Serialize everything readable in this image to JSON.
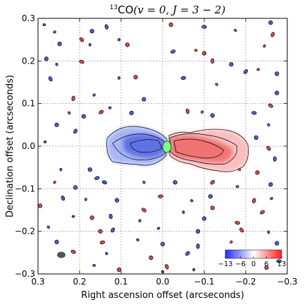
{
  "chart_data": {
    "type": "heatmap",
    "title": {
      "isotope_superscript": "13",
      "molecule": "CO",
      "transition": "(v = 0,  J = 3 − 2)"
    },
    "xlabel": "Right ascension offset (arcseconds)",
    "ylabel": "Declination offset (arcseconds)",
    "xlim": [
      0.3,
      -0.3
    ],
    "ylim": [
      -0.3,
      0.3
    ],
    "x_ticks": [
      0.3,
      0.2,
      0.1,
      0.0,
      -0.1,
      -0.2,
      -0.3
    ],
    "x_tick_labels": [
      "0.3",
      "0.2",
      "0.1",
      "0.0",
      "−0.1",
      "−0.2",
      "−0.3"
    ],
    "y_ticks": [
      -0.3,
      -0.2,
      -0.1,
      0.0,
      0.1,
      0.2,
      0.3
    ],
    "y_tick_labels": [
      "−0.3",
      "−0.2",
      "−0.1",
      "0.0",
      "0.1",
      "0.2",
      "0.3"
    ],
    "grid": true,
    "colorbar": {
      "position": "bottom-right",
      "tick_labels": [
        "−13",
        "−6",
        "0",
        "6",
        "13"
      ],
      "range": [
        -13,
        13
      ],
      "colormap": "bwr"
    },
    "blueshifted_lobe": {
      "x_range": [
        0.14,
        0.005
      ],
      "y_range": [
        -0.045,
        0.025
      ],
      "color": "#5a6ee8"
    },
    "redshifted_lobe": {
      "x_range": [
        -0.005,
        -0.17
      ],
      "y_range": [
        -0.065,
        0.04
      ],
      "color": "#f07070"
    },
    "continuum_peak": {
      "x": 0.0,
      "y": 0.0,
      "color": "#7fff7f"
    },
    "beam": {
      "x": 0.265,
      "y": -0.27,
      "color": "#555555"
    },
    "noise_specks": [
      {
        "x": 0.285,
        "y": 0.285,
        "s": -1
      },
      {
        "x": 0.17,
        "y": 0.27,
        "s": -1
      },
      {
        "x": 0.135,
        "y": 0.28,
        "s": -1
      },
      {
        "x": 0.105,
        "y": 0.25,
        "s": -1
      },
      {
        "x": -0.02,
        "y": 0.285,
        "s": 1
      },
      {
        "x": -0.1,
        "y": 0.28,
        "s": -1
      },
      {
        "x": -0.175,
        "y": 0.272,
        "s": 1
      },
      {
        "x": -0.26,
        "y": 0.29,
        "s": -1
      },
      {
        "x": -0.265,
        "y": 0.262,
        "s": 1
      },
      {
        "x": 0.26,
        "y": 0.268,
        "s": -1
      },
      {
        "x": 0.248,
        "y": 0.24,
        "s": -1
      },
      {
        "x": 0.195,
        "y": 0.25,
        "s": 1
      },
      {
        "x": 0.175,
        "y": 0.238,
        "s": -1
      },
      {
        "x": 0.085,
        "y": 0.238,
        "s": 1
      },
      {
        "x": -0.025,
        "y": 0.222,
        "s": -1
      },
      {
        "x": -0.08,
        "y": 0.225,
        "s": 1
      },
      {
        "x": -0.1,
        "y": 0.218,
        "s": 1
      },
      {
        "x": -0.12,
        "y": 0.2,
        "s": 1
      },
      {
        "x": -0.245,
        "y": 0.235,
        "s": 1
      },
      {
        "x": 0.28,
        "y": 0.205,
        "s": -1
      },
      {
        "x": 0.195,
        "y": 0.198,
        "s": 1
      },
      {
        "x": 0.255,
        "y": 0.192,
        "s": -1
      },
      {
        "x": -0.165,
        "y": 0.192,
        "s": -1
      },
      {
        "x": -0.2,
        "y": 0.175,
        "s": -1
      },
      {
        "x": -0.23,
        "y": 0.18,
        "s": 1
      },
      {
        "x": -0.275,
        "y": 0.17,
        "s": -1
      },
      {
        "x": 0.27,
        "y": 0.158,
        "s": -1
      },
      {
        "x": 0.105,
        "y": 0.16,
        "s": -1
      },
      {
        "x": 0.065,
        "y": 0.162,
        "s": 1
      },
      {
        "x": -0.05,
        "y": 0.16,
        "s": -1
      },
      {
        "x": -0.13,
        "y": 0.145,
        "s": 1
      },
      {
        "x": -0.275,
        "y": 0.125,
        "s": -1
      },
      {
        "x": 0.215,
        "y": 0.112,
        "s": 1
      },
      {
        "x": 0.165,
        "y": 0.12,
        "s": -1
      },
      {
        "x": 0.045,
        "y": 0.11,
        "s": -1
      },
      {
        "x": -0.26,
        "y": 0.095,
        "s": 1
      },
      {
        "x": 0.225,
        "y": 0.078,
        "s": -1
      },
      {
        "x": 0.19,
        "y": 0.07,
        "s": -1
      },
      {
        "x": 0.148,
        "y": 0.08,
        "s": 1
      },
      {
        "x": 0.127,
        "y": 0.09,
        "s": -1
      },
      {
        "x": 0.075,
        "y": 0.078,
        "s": -1
      },
      {
        "x": -0.06,
        "y": 0.082,
        "s": 1
      },
      {
        "x": -0.095,
        "y": 0.08,
        "s": 1
      },
      {
        "x": -0.12,
        "y": 0.072,
        "s": -1
      },
      {
        "x": -0.22,
        "y": 0.078,
        "s": -1
      },
      {
        "x": -0.255,
        "y": 0.05,
        "s": -1
      },
      {
        "x": 0.255,
        "y": 0.05,
        "s": -1
      },
      {
        "x": 0.21,
        "y": 0.035,
        "s": -1
      },
      {
        "x": 0.283,
        "y": 0.01,
        "s": -1
      },
      {
        "x": -0.225,
        "y": 0.02,
        "s": -1
      },
      {
        "x": -0.255,
        "y": -0.005,
        "s": 1
      },
      {
        "x": 0.245,
        "y": -0.055,
        "s": -1
      },
      {
        "x": 0.175,
        "y": -0.055,
        "s": -1
      },
      {
        "x": 0.158,
        "y": -0.075,
        "s": -1
      },
      {
        "x": -0.185,
        "y": -0.055,
        "s": 1
      },
      {
        "x": -0.228,
        "y": -0.062,
        "s": 1
      },
      {
        "x": -0.27,
        "y": -0.03,
        "s": -1
      },
      {
        "x": 0.26,
        "y": -0.085,
        "s": 1
      },
      {
        "x": 0.21,
        "y": -0.097,
        "s": -1
      },
      {
        "x": 0.14,
        "y": -0.085,
        "s": -1
      },
      {
        "x": 0.045,
        "y": -0.085,
        "s": 1
      },
      {
        "x": -0.03,
        "y": -0.085,
        "s": -1
      },
      {
        "x": -0.12,
        "y": -0.085,
        "s": 1
      },
      {
        "x": -0.18,
        "y": -0.095,
        "s": 1
      },
      {
        "x": -0.26,
        "y": -0.09,
        "s": -1
      },
      {
        "x": 0.24,
        "y": -0.122,
        "s": -1
      },
      {
        "x": 0.185,
        "y": -0.125,
        "s": 1
      },
      {
        "x": 0.11,
        "y": -0.127,
        "s": -1
      },
      {
        "x": 0.005,
        "y": -0.118,
        "s": 1
      },
      {
        "x": -0.07,
        "y": -0.128,
        "s": -1
      },
      {
        "x": -0.115,
        "y": -0.118,
        "s": -1
      },
      {
        "x": -0.22,
        "y": -0.128,
        "s": 1
      },
      {
        "x": -0.262,
        "y": -0.123,
        "s": -1
      },
      {
        "x": 0.295,
        "y": -0.14,
        "s": 1
      },
      {
        "x": 0.045,
        "y": -0.15,
        "s": 1
      },
      {
        "x": -0.05,
        "y": -0.155,
        "s": -1
      },
      {
        "x": -0.12,
        "y": -0.145,
        "s": 1
      },
      {
        "x": -0.24,
        "y": -0.155,
        "s": 1
      },
      {
        "x": 0.215,
        "y": -0.165,
        "s": -1
      },
      {
        "x": 0.17,
        "y": -0.168,
        "s": 1
      },
      {
        "x": 0.125,
        "y": -0.165,
        "s": -1
      },
      {
        "x": 0.055,
        "y": -0.175,
        "s": -1
      },
      {
        "x": -0.1,
        "y": -0.17,
        "s": -1
      },
      {
        "x": -0.18,
        "y": -0.18,
        "s": 1
      },
      {
        "x": 0.275,
        "y": -0.19,
        "s": -1
      },
      {
        "x": 0.15,
        "y": -0.2,
        "s": 1
      },
      {
        "x": 0.12,
        "y": -0.197,
        "s": -1
      },
      {
        "x": 0.01,
        "y": -0.193,
        "s": -1
      },
      {
        "x": -0.085,
        "y": -0.2,
        "s": -1
      },
      {
        "x": -0.19,
        "y": -0.197,
        "s": 1
      },
      {
        "x": -0.255,
        "y": -0.202,
        "s": -1
      },
      {
        "x": 0.255,
        "y": -0.225,
        "s": -1
      },
      {
        "x": 0.145,
        "y": -0.226,
        "s": 1
      },
      {
        "x": 0.06,
        "y": -0.22,
        "s": -1
      },
      {
        "x": 0.0,
        "y": -0.23,
        "s": -1
      },
      {
        "x": -0.085,
        "y": -0.235,
        "s": -1
      },
      {
        "x": -0.165,
        "y": -0.225,
        "s": 1
      },
      {
        "x": -0.275,
        "y": -0.228,
        "s": -1
      },
      {
        "x": 0.215,
        "y": -0.248,
        "s": 1
      },
      {
        "x": 0.135,
        "y": -0.252,
        "s": -1
      },
      {
        "x": 0.028,
        "y": -0.262,
        "s": 1
      },
      {
        "x": -0.06,
        "y": -0.252,
        "s": -1
      },
      {
        "x": 0.165,
        "y": -0.28,
        "s": -1
      },
      {
        "x": 0.105,
        "y": -0.29,
        "s": 1
      },
      {
        "x": -0.01,
        "y": -0.283,
        "s": 1
      },
      {
        "x": -0.075,
        "y": -0.29,
        "s": -1
      },
      {
        "x": -0.25,
        "y": -0.285,
        "s": 1
      },
      {
        "x": -0.28,
        "y": -0.27,
        "s": -1
      },
      {
        "x": 0.0,
        "y": -0.295,
        "s": 1
      }
    ]
  }
}
